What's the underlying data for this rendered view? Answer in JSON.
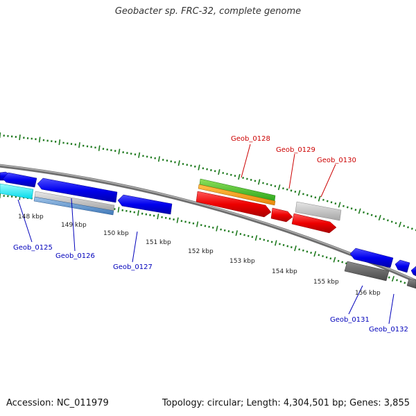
{
  "title": "Geobacter sp. FRC-32, complete genome",
  "footer": {
    "accession": "Accession: NC_011979",
    "summary": "Topology: circular; Length: 4,304,501 bp; Genes: 3,855"
  },
  "colors": {
    "backbone": "#8c8c8c",
    "tick": "#1f7a1f",
    "label_top": "#cc0000",
    "label_bottom": "#0000bb"
  },
  "scale_labels": [
    "148 kbp",
    "149 kbp",
    "150 kbp",
    "151 kbp",
    "152 kbp",
    "153 kbp",
    "154 kbp",
    "155 kbp",
    "156 kbp"
  ],
  "gene_labels": [
    {
      "id": "geob-0125",
      "text": "Geob_0125",
      "side": "bottom"
    },
    {
      "id": "geob-0126",
      "text": "Geob_0126",
      "side": "bottom"
    },
    {
      "id": "geob-0127",
      "text": "Geob_0127",
      "side": "bottom"
    },
    {
      "id": "geob-0128",
      "text": "Geob_0128",
      "side": "top"
    },
    {
      "id": "geob-0129",
      "text": "Geob_0129",
      "side": "top"
    },
    {
      "id": "geob-0130",
      "text": "Geob_0130",
      "side": "top"
    },
    {
      "id": "geob-0131",
      "text": "Geob_0131",
      "side": "bottom"
    },
    {
      "id": "geob-0132",
      "text": "Geob_0132",
      "side": "bottom"
    }
  ]
}
